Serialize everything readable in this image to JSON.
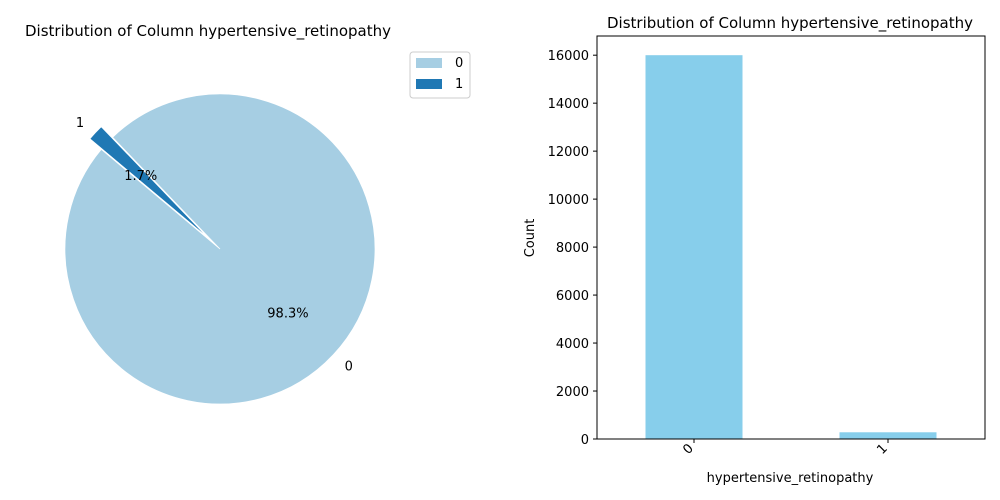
{
  "chart_data": [
    {
      "type": "pie",
      "title": "Distribution of Column hypertensive_retinopathy",
      "categories": [
        "0",
        "1"
      ],
      "values": [
        98.3,
        1.7
      ],
      "value_labels": [
        "98.3%",
        "1.7%"
      ],
      "colors": [
        "#a6cee3",
        "#1f78b4"
      ],
      "legend": {
        "placement": "top-right",
        "entries": [
          "0",
          "1"
        ]
      },
      "explode": [
        0,
        0.1
      ]
    },
    {
      "type": "bar",
      "title": "Distribution of Column hypertensive_retinopathy",
      "categories": [
        "0",
        "1"
      ],
      "values": [
        16000,
        280
      ],
      "xlabel": "hypertensive_retinopathy",
      "ylabel": "Count",
      "ylim": [
        0,
        16800
      ],
      "yticks": [
        0,
        2000,
        4000,
        6000,
        8000,
        10000,
        12000,
        14000,
        16000
      ],
      "color": "#87ceeb",
      "grid": false
    }
  ]
}
